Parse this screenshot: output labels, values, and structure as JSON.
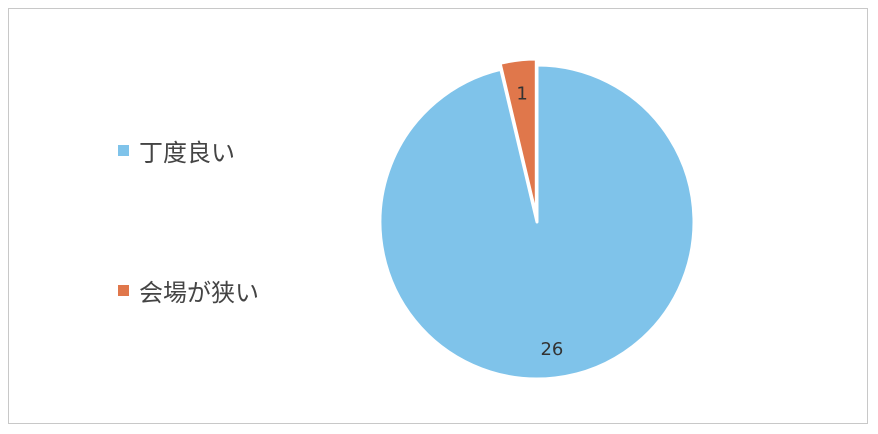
{
  "chart_data": {
    "type": "pie",
    "title": "",
    "categories": [
      "丁度良い",
      "会場が狭い"
    ],
    "values": [
      26,
      1
    ],
    "data_labels": [
      "26",
      "1"
    ],
    "colors": [
      "#7fc3ea",
      "#e0774b"
    ],
    "legend_position": "left",
    "slice_border_color": "#ffffff"
  }
}
